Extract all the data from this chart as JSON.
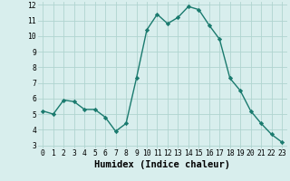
{
  "x": [
    0,
    1,
    2,
    3,
    4,
    5,
    6,
    7,
    8,
    9,
    10,
    11,
    12,
    13,
    14,
    15,
    16,
    17,
    18,
    19,
    20,
    21,
    22,
    23
  ],
  "y": [
    5.2,
    5.0,
    5.9,
    5.8,
    5.3,
    5.3,
    4.8,
    3.9,
    4.4,
    7.3,
    10.4,
    11.4,
    10.8,
    11.2,
    11.9,
    11.7,
    10.7,
    9.8,
    7.3,
    6.5,
    5.2,
    4.4,
    3.7,
    3.2
  ],
  "line_color": "#1a7a6e",
  "marker": "D",
  "marker_size": 2.2,
  "bg_color": "#d8eeed",
  "grid_color": "#b0d4d0",
  "xlabel": "Humidex (Indice chaleur)",
  "xlim": [
    -0.5,
    23.5
  ],
  "ylim": [
    2.8,
    12.2
  ],
  "yticks": [
    3,
    4,
    5,
    6,
    7,
    8,
    9,
    10,
    11,
    12
  ],
  "xticks": [
    0,
    1,
    2,
    3,
    4,
    5,
    6,
    7,
    8,
    9,
    10,
    11,
    12,
    13,
    14,
    15,
    16,
    17,
    18,
    19,
    20,
    21,
    22,
    23
  ],
  "tick_label_fontsize": 5.8,
  "xlabel_fontsize": 7.5,
  "line_width": 1.0
}
